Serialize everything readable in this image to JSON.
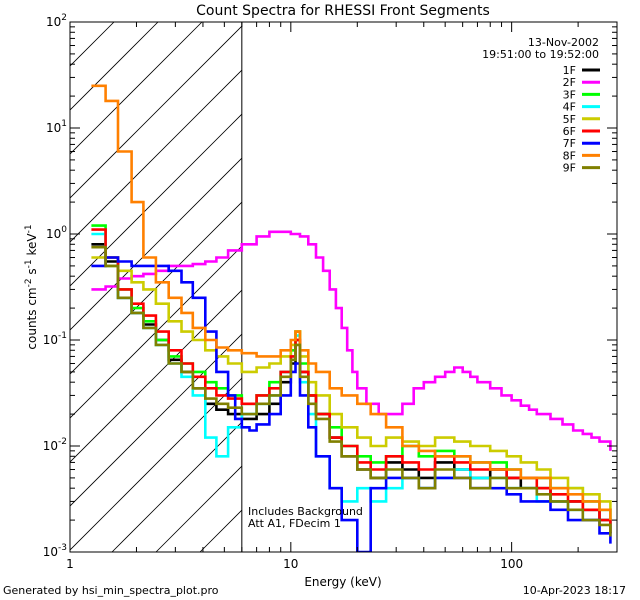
{
  "chart_data": {
    "type": "line",
    "title": "Count Spectra for RHESSI Front Segments",
    "xlabel": "Energy (keV)",
    "ylabel_parts": [
      "counts cm",
      "-2",
      " s",
      "-1",
      " keV",
      "-1"
    ],
    "xscale": "log",
    "yscale": "log",
    "xlim": [
      1,
      300
    ],
    "ylim": [
      0.001,
      100
    ],
    "x_ticks": [
      {
        "value": 1,
        "label": "1"
      },
      {
        "value": 10,
        "label": "10"
      },
      {
        "value": 100,
        "label": "100"
      }
    ],
    "y_ticks": [
      {
        "value": 0.001,
        "base": "10",
        "exp": "-3"
      },
      {
        "value": 0.01,
        "base": "10",
        "exp": "-2"
      },
      {
        "value": 0.1,
        "base": "10",
        "exp": "-1"
      },
      {
        "value": 1,
        "base": "10",
        "exp": "0"
      },
      {
        "value": 10,
        "base": "10",
        "exp": "1"
      },
      {
        "value": 100,
        "base": "10",
        "exp": "2"
      }
    ],
    "hatched_region": [
      1,
      6
    ],
    "vertical_line_x": 6,
    "annotations": {
      "date": "13-Nov-2002",
      "time_range": "19:51:00 to 19:52:00",
      "background_note": "Includes Background",
      "attenuator_note": "Att A1, FDecim 1"
    },
    "legend_position": "top-right",
    "series": [
      {
        "name": "1F",
        "color": "#000000",
        "x": [
          1.25,
          1.45,
          1.65,
          1.9,
          2.15,
          2.45,
          2.8,
          3.2,
          3.6,
          4.1,
          4.6,
          5.2,
          6,
          7,
          8,
          9,
          10,
          10.5,
          11,
          12,
          13,
          15,
          17,
          20,
          23,
          27,
          32,
          38,
          45,
          55,
          65,
          80,
          95,
          110,
          130,
          150,
          180,
          210,
          250,
          280
        ],
        "y": [
          0.8,
          0.55,
          0.25,
          0.18,
          0.14,
          0.1,
          0.065,
          0.05,
          0.035,
          0.025,
          0.022,
          0.02,
          0.018,
          0.02,
          0.025,
          0.04,
          0.06,
          0.1,
          0.05,
          0.03,
          0.02,
          0.012,
          0.008,
          0.006,
          0.005,
          0.007,
          0.006,
          0.005,
          0.007,
          0.006,
          0.005,
          0.006,
          0.005,
          0.004,
          0.004,
          0.003,
          0.003,
          0.0025,
          0.002,
          0.0015
        ]
      },
      {
        "name": "2F",
        "color": "#ff00ff",
        "x": [
          1.25,
          1.45,
          1.65,
          1.9,
          2.15,
          2.45,
          2.8,
          3.2,
          3.6,
          4.1,
          4.6,
          5.2,
          6,
          7,
          8,
          9,
          10,
          11,
          12,
          13,
          14,
          15,
          16,
          17,
          18,
          19,
          20,
          22,
          25,
          28,
          32,
          36,
          40,
          45,
          50,
          55,
          60,
          65,
          70,
          80,
          90,
          100,
          110,
          120,
          130,
          150,
          170,
          190,
          210,
          230,
          250,
          280
        ],
        "y": [
          0.3,
          0.32,
          0.38,
          0.4,
          0.42,
          0.45,
          0.5,
          0.5,
          0.52,
          0.55,
          0.6,
          0.7,
          0.8,
          0.95,
          1.05,
          1.05,
          1,
          0.95,
          0.8,
          0.6,
          0.45,
          0.3,
          0.2,
          0.13,
          0.08,
          0.05,
          0.035,
          0.025,
          0.02,
          0.02,
          0.025,
          0.035,
          0.04,
          0.045,
          0.05,
          0.055,
          0.05,
          0.045,
          0.04,
          0.035,
          0.03,
          0.027,
          0.024,
          0.022,
          0.02,
          0.018,
          0.016,
          0.014,
          0.013,
          0.012,
          0.011,
          0.009
        ]
      },
      {
        "name": "3F",
        "color": "#00ff00",
        "x": [
          1.25,
          1.45,
          1.65,
          1.9,
          2.15,
          2.45,
          2.8,
          3.2,
          3.6,
          4.1,
          4.6,
          5.2,
          6,
          7,
          8,
          9,
          10,
          10.5,
          11,
          12,
          13,
          15,
          17,
          20,
          23,
          27,
          32,
          38,
          45,
          55,
          65,
          80,
          95,
          110,
          130,
          150,
          180,
          210,
          250,
          280
        ],
        "y": [
          1.2,
          0.6,
          0.3,
          0.2,
          0.15,
          0.1,
          0.07,
          0.06,
          0.05,
          0.04,
          0.035,
          0.03,
          0.025,
          0.03,
          0.04,
          0.05,
          0.08,
          0.12,
          0.06,
          0.03,
          0.02,
          0.015,
          0.01,
          0.008,
          0.007,
          0.008,
          0.01,
          0.008,
          0.009,
          0.008,
          0.007,
          0.007,
          0.006,
          0.005,
          0.005,
          0.004,
          0.004,
          0.003,
          0.0025,
          0.002
        ]
      },
      {
        "name": "4F",
        "color": "#00ffff",
        "x": [
          1.25,
          1.45,
          1.65,
          1.9,
          2.15,
          2.45,
          2.8,
          3.2,
          3.6,
          4.1,
          4.6,
          5.2,
          6,
          7,
          8,
          9,
          10,
          10.5,
          11,
          12,
          13,
          15,
          17,
          20,
          23,
          27,
          32,
          38,
          45,
          55,
          65,
          80,
          95,
          110,
          130,
          150,
          180,
          210,
          250,
          280
        ],
        "y": [
          1,
          0.5,
          0.25,
          0.18,
          0.13,
          0.09,
          0.06,
          0.045,
          0.03,
          0.012,
          0.008,
          0.015,
          0.02,
          0.025,
          0.03,
          0.05,
          0.07,
          0.11,
          0.04,
          0.02,
          0.008,
          0.004,
          0.003,
          0.004,
          0.003,
          0.004,
          0.005,
          0.004,
          0.005,
          0.006,
          0.005,
          0.005,
          0.004,
          0.004,
          0.003,
          0.003,
          0.0025,
          0.002,
          0.002,
          0.0015
        ]
      },
      {
        "name": "5F",
        "color": "#cccc00",
        "x": [
          1.25,
          1.45,
          1.65,
          1.9,
          2.15,
          2.45,
          2.8,
          3.2,
          3.6,
          4.1,
          4.6,
          5.2,
          6,
          7,
          8,
          9,
          10,
          10.5,
          11,
          12,
          13,
          15,
          17,
          20,
          23,
          27,
          32,
          38,
          45,
          55,
          65,
          80,
          95,
          110,
          130,
          150,
          180,
          210,
          250,
          280
        ],
        "y": [
          0.6,
          0.5,
          0.45,
          0.35,
          0.3,
          0.22,
          0.15,
          0.12,
          0.1,
          0.08,
          0.07,
          0.06,
          0.05,
          0.055,
          0.06,
          0.07,
          0.09,
          0.12,
          0.07,
          0.04,
          0.03,
          0.02,
          0.015,
          0.012,
          0.01,
          0.012,
          0.011,
          0.01,
          0.012,
          0.011,
          0.01,
          0.009,
          0.008,
          0.007,
          0.006,
          0.005,
          0.004,
          0.0035,
          0.003,
          0.0025
        ]
      },
      {
        "name": "6F",
        "color": "#ff0000",
        "x": [
          1.25,
          1.45,
          1.65,
          1.9,
          2.15,
          2.45,
          2.8,
          3.2,
          3.6,
          4.1,
          4.6,
          5.2,
          6,
          7,
          8,
          9,
          10,
          10.5,
          11,
          12,
          13,
          15,
          17,
          20,
          23,
          27,
          32,
          38,
          45,
          55,
          65,
          80,
          95,
          110,
          130,
          150,
          180,
          210,
          250,
          280
        ],
        "y": [
          1.1,
          0.6,
          0.3,
          0.22,
          0.17,
          0.12,
          0.08,
          0.06,
          0.045,
          0.035,
          0.03,
          0.028,
          0.025,
          0.03,
          0.035,
          0.05,
          0.07,
          0.1,
          0.05,
          0.03,
          0.02,
          0.012,
          0.01,
          0.007,
          0.006,
          0.008,
          0.007,
          0.006,
          0.008,
          0.007,
          0.006,
          0.006,
          0.005,
          0.005,
          0.004,
          0.0035,
          0.003,
          0.0025,
          0.002,
          0.0015
        ]
      },
      {
        "name": "7F",
        "color": "#0000ff",
        "x": [
          1.25,
          1.45,
          1.65,
          1.9,
          2.15,
          2.45,
          2.8,
          3.2,
          3.6,
          4.1,
          4.6,
          5.2,
          5.6,
          6,
          6.5,
          7,
          8,
          9,
          10,
          10.5,
          11,
          12,
          13,
          15,
          17,
          20,
          23,
          27,
          32,
          38,
          45,
          55,
          65,
          80,
          95,
          110,
          130,
          150,
          180,
          210,
          250,
          280
        ],
        "y": [
          0.5,
          0.6,
          0.55,
          0.5,
          0.5,
          0.5,
          0.45,
          0.35,
          0.25,
          0.12,
          0.05,
          0.03,
          0.018,
          0.015,
          0.014,
          0.016,
          0.02,
          0.03,
          0.05,
          0.06,
          0.03,
          0.015,
          0.008,
          0.004,
          0.002,
          0.001,
          0.004,
          0.005,
          0.005,
          0.004,
          0.005,
          0.005,
          0.004,
          0.004,
          0.0035,
          0.003,
          0.003,
          0.0025,
          0.002,
          0.002,
          0.0015,
          0.0012
        ]
      },
      {
        "name": "8F",
        "color": "#ff8000",
        "x": [
          1.25,
          1.45,
          1.65,
          1.9,
          2.15,
          2.45,
          2.8,
          3.2,
          3.6,
          4.1,
          4.6,
          5.2,
          6,
          7,
          8,
          9,
          10,
          10.5,
          11,
          12,
          13,
          15,
          17,
          20,
          23,
          27,
          32,
          38,
          45,
          55,
          65,
          80,
          95,
          110,
          130,
          150,
          180,
          210,
          250,
          280
        ],
        "y": [
          25,
          18,
          6,
          2,
          0.6,
          0.35,
          0.25,
          0.18,
          0.13,
          0.1,
          0.085,
          0.08,
          0.075,
          0.07,
          0.07,
          0.08,
          0.1,
          0.12,
          0.08,
          0.06,
          0.05,
          0.035,
          0.03,
          0.025,
          0.02,
          0.015,
          0.01,
          0.009,
          0.008,
          0.008,
          0.007,
          0.006,
          0.006,
          0.005,
          0.005,
          0.004,
          0.0035,
          0.003,
          0.0025,
          0.002
        ]
      },
      {
        "name": "9F",
        "color": "#808000",
        "x": [
          1.25,
          1.45,
          1.65,
          1.9,
          2.15,
          2.45,
          2.8,
          3.2,
          3.6,
          4.1,
          4.6,
          5.2,
          6,
          7,
          8,
          9,
          10,
          10.5,
          11,
          12,
          13,
          15,
          17,
          20,
          23,
          27,
          32,
          38,
          45,
          55,
          65,
          80,
          95,
          110,
          130,
          150,
          180,
          210,
          250,
          280
        ],
        "y": [
          0.75,
          0.5,
          0.25,
          0.18,
          0.13,
          0.09,
          0.06,
          0.05,
          0.035,
          0.028,
          0.025,
          0.023,
          0.02,
          0.025,
          0.03,
          0.045,
          0.065,
          0.09,
          0.045,
          0.025,
          0.018,
          0.011,
          0.008,
          0.006,
          0.005,
          0.006,
          0.005,
          0.004,
          0.006,
          0.005,
          0.004,
          0.005,
          0.004,
          0.004,
          0.0035,
          0.003,
          0.0025,
          0.002,
          0.0018,
          0.0014
        ]
      }
    ]
  },
  "footer": {
    "generated_by": "Generated by hsi_min_spectra_plot.pro",
    "timestamp": "10-Apr-2023 18:17"
  }
}
